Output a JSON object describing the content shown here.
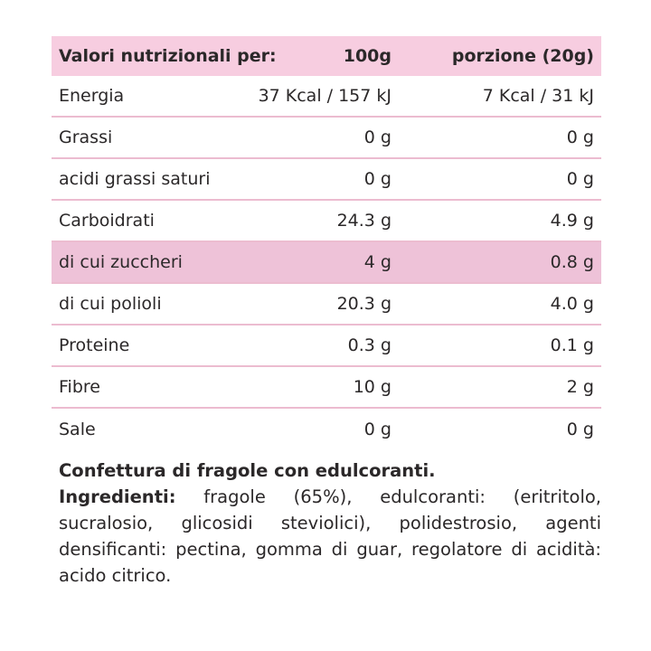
{
  "colors": {
    "header_bg": "#f7cde0",
    "highlight_bg": "#eec2d8",
    "divider": "#ecbcd0",
    "text": "#2b2829"
  },
  "table": {
    "header": {
      "label": "Valori nutrizionali per:",
      "col_100g": "100g",
      "col_portion": "porzione (20g)"
    },
    "rows": [
      {
        "label": "Energia",
        "per100": "37 Kcal / 157 kJ",
        "portion": "7 Kcal / 31 kJ",
        "highlight": false
      },
      {
        "label": "Grassi",
        "per100": "0 g",
        "portion": "0 g",
        "highlight": false
      },
      {
        "label": "acidi grassi saturi",
        "per100": "0 g",
        "portion": "0 g",
        "highlight": false
      },
      {
        "label": "Carboidrati",
        "per100": "24.3 g",
        "portion": "4.9 g",
        "highlight": false
      },
      {
        "label": "di cui zuccheri",
        "per100": "4 g",
        "portion": "0.8 g",
        "highlight": true
      },
      {
        "label": "di cui polioli",
        "per100": "20.3 g",
        "portion": "4.0 g",
        "highlight": false
      },
      {
        "label": "Proteine",
        "per100": "0.3 g",
        "portion": "0.1 g",
        "highlight": false
      },
      {
        "label": "Fibre",
        "per100": "10 g",
        "portion": "2 g",
        "highlight": false
      },
      {
        "label": "Sale",
        "per100": "0 g",
        "portion": "0 g",
        "highlight": false
      }
    ]
  },
  "description": {
    "title": "Confettura di fragole con edulcoranti.",
    "ingredients_label": "Ingredienti:",
    "ingredients_text": "fragole (65%), edulcoranti: (eritritolo, sucralosio, glicosidi steviolici), polidestrosio, agenti densificanti: pectina, gomma di guar, regolatore di acidità: acido citrico."
  }
}
